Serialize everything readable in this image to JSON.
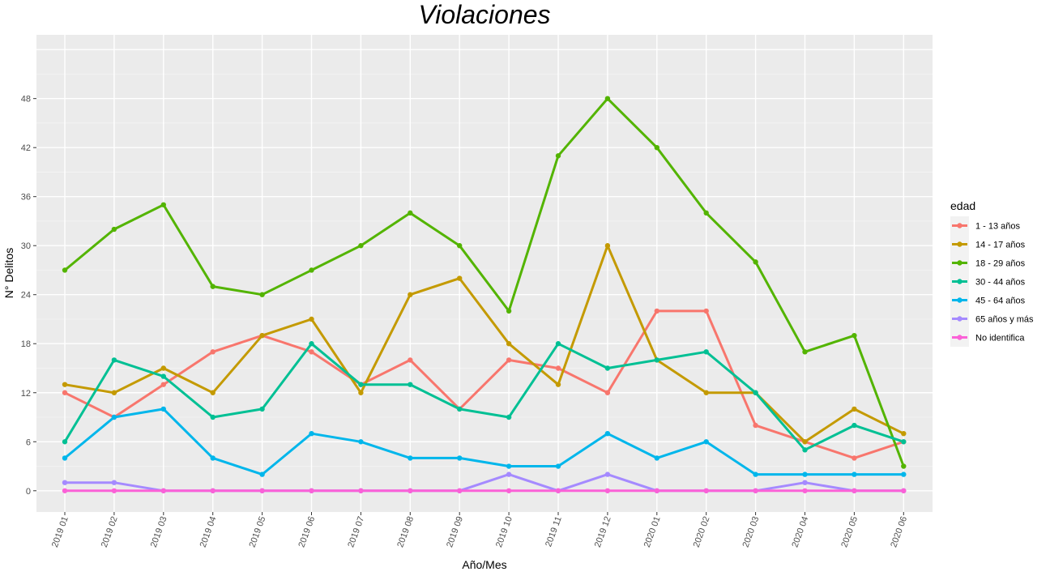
{
  "chart_data": {
    "type": "line",
    "title": "Violaciones",
    "xlabel": "Año/Mes",
    "ylabel": "N° Delitos",
    "ylim": [
      -2.6,
      55.8
    ],
    "yticks": [
      0,
      6,
      12,
      18,
      24,
      30,
      36,
      42,
      48
    ],
    "ytick_labels": [
      "0",
      "6",
      "12",
      "18",
      "24",
      "30",
      "36",
      "42",
      "48"
    ],
    "grid": true,
    "legend": {
      "title": "edad",
      "placement": "right"
    },
    "x": [
      "2019 01",
      "2019 02",
      "2019 03",
      "2019 04",
      "2019 05",
      "2019 06",
      "2019 07",
      "2019 08",
      "2019 09",
      "2019 10",
      "2019 11",
      "2019 12",
      "2020 01",
      "2020 02",
      "2020 03",
      "2020 04",
      "2020 05",
      "2020 06"
    ],
    "series": [
      {
        "name": "1 - 13 años",
        "color": "#F8766D",
        "values": [
          12,
          9,
          13,
          17,
          19,
          17,
          13,
          16,
          10,
          16,
          15,
          12,
          22,
          22,
          8,
          6,
          4,
          6
        ]
      },
      {
        "name": "14 - 17 años",
        "color": "#C49A00",
        "values": [
          13,
          12,
          15,
          12,
          19,
          21,
          12,
          24,
          26,
          18,
          13,
          30,
          16,
          12,
          12,
          6,
          10,
          7
        ]
      },
      {
        "name": "18 - 29 años",
        "color": "#53B400",
        "values": [
          27,
          32,
          35,
          25,
          24,
          27,
          30,
          34,
          30,
          22,
          41,
          48,
          42,
          34,
          28,
          17,
          19,
          3
        ]
      },
      {
        "name": "30 - 44 años",
        "color": "#00C094",
        "values": [
          6,
          16,
          14,
          9,
          10,
          18,
          13,
          13,
          10,
          9,
          18,
          15,
          16,
          17,
          12,
          5,
          8,
          6
        ]
      },
      {
        "name": "45 - 64 años",
        "color": "#00B6EB",
        "values": [
          4,
          9,
          10,
          4,
          2,
          7,
          6,
          4,
          4,
          3,
          3,
          7,
          4,
          6,
          2,
          2,
          2,
          2
        ]
      },
      {
        "name": "65 años y más",
        "color": "#A58AFF",
        "values": [
          1,
          1,
          0,
          0,
          0,
          0,
          0,
          0,
          0,
          2,
          0,
          2,
          0,
          0,
          0,
          1,
          0,
          0
        ]
      },
      {
        "name": "No identifica",
        "color": "#FB61D7",
        "values": [
          0,
          0,
          0,
          0,
          0,
          0,
          0,
          0,
          0,
          0,
          0,
          0,
          0,
          0,
          0,
          0,
          0,
          0
        ]
      }
    ]
  }
}
